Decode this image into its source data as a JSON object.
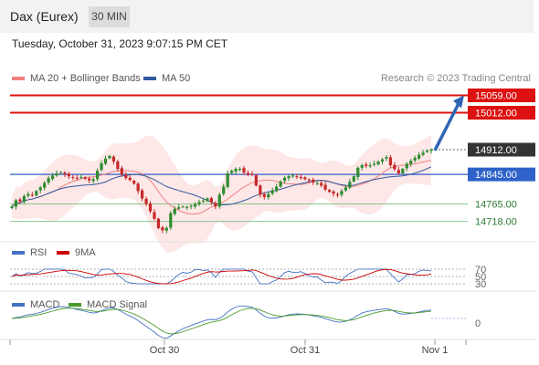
{
  "header": {
    "title": "Dax (Eurex)",
    "timeframe": "30 MIN"
  },
  "datetime": "Tuesday, October 31, 2023 9:07:15 PM CET",
  "legend": {
    "bollinger": {
      "label": "MA 20 + Bollinger Bands",
      "color": "#f08080"
    },
    "ma50": {
      "label": "MA 50",
      "color": "#2f5a9e"
    }
  },
  "credit": "Research © 2023 Trading Central",
  "chart_data": {
    "type": "candlestick",
    "y_range": [
      14670,
      15080
    ],
    "price_levels": [
      {
        "value": 15059.0,
        "label": "15059.00",
        "kind": "resistance"
      },
      {
        "value": 15012.0,
        "label": "15012.00",
        "kind": "resistance"
      },
      {
        "value": 14912.0,
        "label": "14912.00",
        "kind": "last"
      },
      {
        "value": 14845.0,
        "label": "14845.00",
        "kind": "pivot"
      },
      {
        "value": 14765.0,
        "label": "14765.00",
        "kind": "support"
      },
      {
        "value": 14718.0,
        "label": "14718.00",
        "kind": "support"
      }
    ],
    "close_series": [
      14758,
      14775,
      14772,
      14786,
      14792,
      14788,
      14800,
      14810,
      14822,
      14835,
      14842,
      14848,
      14851,
      14846,
      14840,
      14836,
      14834,
      14838,
      14833,
      14829,
      14832,
      14855,
      14875,
      14888,
      14895,
      14880,
      14860,
      14845,
      14835,
      14830,
      14820,
      14800,
      14780,
      14765,
      14745,
      14725,
      14700,
      14694,
      14700,
      14740,
      14752,
      14756,
      14758,
      14757,
      14760,
      14764,
      14770,
      14774,
      14780,
      14770,
      14758,
      14790,
      14812,
      14848,
      14855,
      14860,
      14860,
      14850,
      14845,
      14845,
      14815,
      14790,
      14784,
      14792,
      14802,
      14812,
      14826,
      14836,
      14840,
      14842,
      14838,
      14835,
      14832,
      14830,
      14823,
      14822,
      14815,
      14804,
      14798,
      14793,
      14790,
      14800,
      14810,
      14825,
      14840,
      14863,
      14870,
      14868,
      14870,
      14874,
      14880,
      14886,
      14892,
      14870,
      14859,
      14848,
      14860,
      14874,
      14882,
      14890,
      14898,
      14904,
      14910,
      14912
    ],
    "projection_arrow": {
      "from": 14910,
      "to": 15059
    },
    "x_labels": [
      "Oct 30",
      "Oct 31",
      "Nov 1"
    ],
    "rsi": {
      "legend": [
        {
          "name": "RSI",
          "color": "#4472c4"
        },
        {
          "name": "9MA",
          "color": "#cc0000"
        }
      ],
      "levels": [
        "70",
        "50",
        "30"
      ]
    },
    "macd": {
      "legend": [
        {
          "name": "MACD",
          "color": "#4472c4"
        },
        {
          "name": "MACD Signal",
          "color": "#4a9a2a"
        }
      ],
      "zero_label": "0"
    }
  }
}
